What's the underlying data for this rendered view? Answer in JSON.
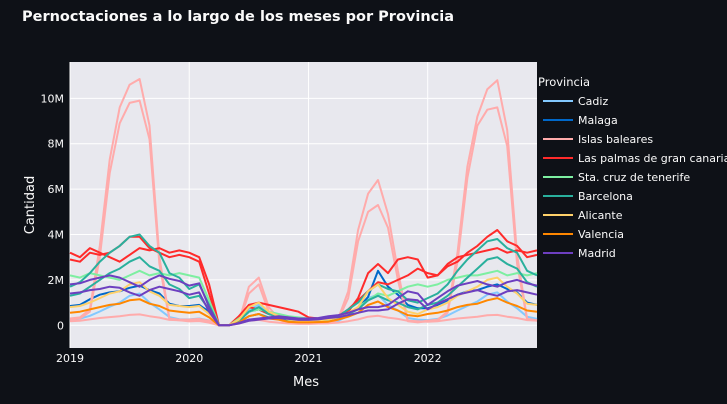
{
  "chart_data": {
    "type": "line",
    "title": "Pernoctaciones a lo largo de los meses por Provincia",
    "xlabel": "Mes",
    "ylabel": "Cantidad",
    "legend_title": "Provincia",
    "legend_position": "right",
    "grid": true,
    "xlim": [
      "2019-01",
      "2022-12"
    ],
    "ylim": [
      -1000000,
      11600000
    ],
    "x_ticks": [
      {
        "value": "2019-01",
        "label": "2019"
      },
      {
        "value": "2020-01",
        "label": "2020"
      },
      {
        "value": "2021-01",
        "label": "2021"
      },
      {
        "value": "2022-01",
        "label": "2022"
      }
    ],
    "y_ticks": [
      {
        "value": 0,
        "label": "0"
      },
      {
        "value": 2000000,
        "label": "2M"
      },
      {
        "value": 4000000,
        "label": "4M"
      },
      {
        "value": 6000000,
        "label": "6M"
      },
      {
        "value": 8000000,
        "label": "8M"
      },
      {
        "value": 10000000,
        "label": "10M"
      }
    ],
    "series": [
      {
        "name": "Cadiz",
        "color": "#83c9ff",
        "values": [
          [
            250000,
            290000,
            420000,
            610000,
            820000,
            1000000,
            1300000,
            1400000,
            1000000,
            700000,
            360000,
            270000
          ],
          [
            260000,
            300000,
            210000,
            0,
            0,
            250000,
            700000,
            900000,
            500000,
            300000,
            120000,
            100000
          ],
          [
            110000,
            120000,
            120000,
            200000,
            420000,
            800000,
            1200000,
            1350000,
            900000,
            650000,
            320000,
            250000
          ],
          [
            230000,
            280000,
            430000,
            650000,
            850000,
            1050000,
            1350000,
            1450000,
            1050000,
            750000,
            380000,
            280000
          ]
        ]
      },
      {
        "name": "Malaga",
        "color": "#0068c9",
        "values": [
          [
            850000,
            900000,
            1150000,
            1350000,
            1450000,
            1500000,
            1650000,
            1750000,
            1550000,
            1400000,
            950000,
            850000
          ],
          [
            850000,
            900000,
            600000,
            0,
            0,
            200000,
            600000,
            700000,
            500000,
            400000,
            250000,
            200000
          ],
          [
            180000,
            200000,
            230000,
            350000,
            550000,
            750000,
            1250000,
            2400000,
            1700000,
            1350000,
            900000,
            750000
          ],
          [
            750000,
            900000,
            1100000,
            1350000,
            1500000,
            1550000,
            1700000,
            1800000,
            1600000,
            1450000,
            1000000,
            900000
          ]
        ]
      },
      {
        "name": "Islas baleares",
        "color": "#ffabab",
        "values": [
          [
            300000,
            350000,
            700000,
            3500000,
            7300000,
            9600000,
            10600000,
            10850000,
            8800000,
            3000000,
            300000,
            250000
          ],
          [
            250000,
            280000,
            200000,
            0,
            0,
            150000,
            1700000,
            2100000,
            800000,
            300000,
            100000,
            80000
          ],
          [
            80000,
            90000,
            100000,
            300000,
            1500000,
            4200000,
            5800000,
            6400000,
            4900000,
            2400000,
            200000,
            150000
          ],
          [
            200000,
            250000,
            600000,
            3200000,
            7000000,
            9200000,
            10400000,
            10800000,
            8600000,
            3100000,
            280000,
            220000
          ]
        ]
      },
      {
        "name": "Islas baleares",
        "color": "#ffabab",
        "values": [
          [
            250000,
            300000,
            600000,
            3000000,
            6700000,
            8900000,
            9800000,
            9900000,
            8200000,
            2700000,
            260000,
            220000
          ],
          [
            220000,
            240000,
            180000,
            0,
            0,
            120000,
            1400000,
            1800000,
            600000,
            260000,
            90000,
            70000
          ],
          [
            70000,
            80000,
            90000,
            250000,
            1200000,
            3700000,
            5000000,
            5300000,
            4300000,
            2000000,
            180000,
            130000
          ],
          [
            180000,
            220000,
            550000,
            2800000,
            6500000,
            8800000,
            9500000,
            9600000,
            7900000,
            2700000,
            250000,
            200000
          ]
        ]
      },
      {
        "name": "Las palmas de gran canaria",
        "color": "#ff2b2b",
        "values": [
          [
            3200000,
            3000000,
            3400000,
            3200000,
            3000000,
            2800000,
            3100000,
            3400000,
            3300000,
            3400000,
            3200000,
            3300000
          ],
          [
            3200000,
            3000000,
            1800000,
            0,
            0,
            400000,
            900000,
            1000000,
            900000,
            800000,
            700000,
            600000
          ],
          [
            350000,
            300000,
            250000,
            400000,
            700000,
            1100000,
            1500000,
            1900000,
            1800000,
            2000000,
            2200000,
            2500000
          ],
          [
            2300000,
            2200000,
            2700000,
            3000000,
            3100000,
            3200000,
            3300000,
            3400000,
            3200000,
            3300000,
            3200000,
            3300000
          ]
        ]
      },
      {
        "name": "Las palmas de gran canaria",
        "color": "#ff2b2b",
        "values": [
          [
            2900000,
            2800000,
            3200000,
            3100000,
            3200000,
            3500000,
            3900000,
            3900000,
            3400000,
            3200000,
            3000000,
            3100000
          ],
          [
            3000000,
            2800000,
            1400000,
            0,
            0,
            200000,
            800000,
            700000,
            500000,
            400000,
            300000,
            250000
          ],
          [
            200000,
            180000,
            200000,
            300000,
            600000,
            1200000,
            2300000,
            2700000,
            2300000,
            2900000,
            3000000,
            2900000
          ],
          [
            2100000,
            2200000,
            2600000,
            2800000,
            3200000,
            3500000,
            3900000,
            4200000,
            3700000,
            3500000,
            3000000,
            3100000
          ]
        ]
      },
      {
        "name": "Sta. cruz de tenerife",
        "color": "#7defa1",
        "values": [
          [
            2200000,
            2100000,
            2300000,
            2200000,
            2100000,
            2000000,
            2200000,
            2400000,
            2200000,
            2300000,
            2200000,
            2300000
          ],
          [
            2200000,
            2100000,
            1100000,
            0,
            0,
            300000,
            600000,
            700000,
            600000,
            500000,
            400000,
            350000
          ],
          [
            300000,
            250000,
            200000,
            300000,
            500000,
            800000,
            1100000,
            1400000,
            1300000,
            1500000,
            1700000,
            1800000
          ],
          [
            1700000,
            1800000,
            2000000,
            2100000,
            2200000,
            2200000,
            2300000,
            2400000,
            2200000,
            2300000,
            2200000,
            2300000
          ]
        ]
      },
      {
        "name": "Barcelona",
        "color": "#29b09d",
        "values": [
          [
            1700000,
            1900000,
            2300000,
            2800000,
            3200000,
            3500000,
            3900000,
            4000000,
            3500000,
            3200000,
            2300000,
            2100000
          ],
          [
            1600000,
            1800000,
            900000,
            0,
            0,
            200000,
            600000,
            800000,
            500000,
            400000,
            200000,
            180000
          ],
          [
            200000,
            220000,
            300000,
            400000,
            700000,
            1000000,
            1500000,
            1800000,
            1600000,
            1500000,
            1100000,
            1000000
          ],
          [
            1200000,
            1400000,
            1800000,
            2400000,
            2900000,
            3300000,
            3700000,
            3800000,
            3400000,
            3200000,
            2400000,
            2200000
          ]
        ]
      },
      {
        "name": "Barcelona",
        "color": "#29b09d",
        "values": [
          [
            1300000,
            1400000,
            1700000,
            2000000,
            2300000,
            2500000,
            2800000,
            3000000,
            2600000,
            2400000,
            1800000,
            1600000
          ],
          [
            1200000,
            1300000,
            700000,
            0,
            0,
            150000,
            400000,
            500000,
            350000,
            300000,
            150000,
            120000
          ],
          [
            150000,
            160000,
            200000,
            300000,
            500000,
            700000,
            1100000,
            1300000,
            1100000,
            1000000,
            800000,
            700000
          ],
          [
            900000,
            1000000,
            1300000,
            1700000,
            2100000,
            2500000,
            2900000,
            3000000,
            2700000,
            2500000,
            1900000,
            1700000
          ]
        ]
      },
      {
        "name": "Alicante",
        "color": "#ffd16a",
        "values": [
          [
            800000,
            850000,
            1000000,
            1200000,
            1400000,
            1500000,
            1800000,
            1900000,
            1500000,
            1300000,
            900000,
            850000
          ],
          [
            800000,
            850000,
            500000,
            0,
            0,
            250000,
            800000,
            1000000,
            600000,
            400000,
            250000,
            200000
          ],
          [
            200000,
            220000,
            250000,
            350000,
            550000,
            800000,
            1500000,
            1800000,
            1200000,
            900000,
            600000,
            500000
          ],
          [
            700000,
            800000,
            1000000,
            1300000,
            1500000,
            1700000,
            2000000,
            2100000,
            1700000,
            1400000,
            950000,
            900000
          ]
        ]
      },
      {
        "name": "Valencia",
        "color": "#ffabab",
        "values": [
          [
            180000,
            200000,
            260000,
            320000,
            360000,
            400000,
            460000,
            480000,
            400000,
            340000,
            240000,
            220000
          ],
          [
            170000,
            190000,
            120000,
            0,
            0,
            80000,
            200000,
            240000,
            160000,
            120000,
            80000,
            70000
          ],
          [
            70000,
            80000,
            90000,
            120000,
            180000,
            260000,
            380000,
            420000,
            340000,
            280000,
            200000,
            180000
          ],
          [
            160000,
            180000,
            240000,
            300000,
            340000,
            380000,
            440000,
            460000,
            380000,
            320000,
            230000,
            210000
          ]
        ]
      },
      {
        "name": "Valencia",
        "color": "#ff8700",
        "values": [
          [
            550000,
            600000,
            700000,
            800000,
            900000,
            950000,
            1100000,
            1150000,
            950000,
            850000,
            650000,
            600000
          ],
          [
            550000,
            600000,
            350000,
            0,
            0,
            120000,
            400000,
            500000,
            300000,
            250000,
            150000,
            130000
          ],
          [
            130000,
            140000,
            160000,
            250000,
            380000,
            550000,
            900000,
            1050000,
            800000,
            650000,
            450000,
            400000
          ],
          [
            500000,
            550000,
            650000,
            800000,
            900000,
            950000,
            1100000,
            1200000,
            1000000,
            850000,
            650000,
            600000
          ]
        ]
      },
      {
        "name": "Madrid",
        "color": "#6d3fc0",
        "values": [
          [
            1800000,
            1850000,
            2000000,
            2100000,
            2200000,
            2100000,
            1900000,
            1700000,
            2000000,
            2200000,
            2050000,
            1950000
          ],
          [
            1750000,
            1850000,
            800000,
            0,
            0,
            100000,
            250000,
            300000,
            350000,
            400000,
            350000,
            300000
          ],
          [
            300000,
            320000,
            400000,
            450000,
            550000,
            700000,
            800000,
            800000,
            900000,
            1200000,
            1500000,
            1400000
          ],
          [
            900000,
            1200000,
            1500000,
            1750000,
            1850000,
            1950000,
            1800000,
            1700000,
            1900000,
            2000000,
            1850000,
            1750000
          ]
        ]
      },
      {
        "name": "Madrid",
        "color": "#6d3fc0",
        "values": [
          [
            1400000,
            1450000,
            1550000,
            1600000,
            1700000,
            1650000,
            1450000,
            1300000,
            1550000,
            1700000,
            1600000,
            1500000
          ],
          [
            1350000,
            1450000,
            600000,
            0,
            0,
            80000,
            200000,
            250000,
            300000,
            320000,
            280000,
            240000
          ],
          [
            240000,
            260000,
            320000,
            360000,
            450000,
            550000,
            650000,
            650000,
            700000,
            950000,
            1150000,
            1100000
          ],
          [
            700000,
            950000,
            1150000,
            1350000,
            1450000,
            1550000,
            1400000,
            1300000,
            1500000,
            1550000,
            1450000,
            1350000
          ]
        ]
      }
    ],
    "legend": [
      {
        "name": "Cadiz",
        "color": "#83c9ff"
      },
      {
        "name": "Malaga",
        "color": "#0068c9"
      },
      {
        "name": "Islas baleares",
        "color": "#ffabab"
      },
      {
        "name": "Las palmas de gran canaria",
        "color": "#ff2b2b"
      },
      {
        "name": "Sta. cruz de tenerife",
        "color": "#7defa1"
      },
      {
        "name": "Barcelona",
        "color": "#29b09d"
      },
      {
        "name": "Alicante",
        "color": "#ffd16a"
      },
      {
        "name": "Valencia",
        "color": "#ff8700"
      },
      {
        "name": "Madrid",
        "color": "#6d3fc0"
      }
    ]
  },
  "colors": {
    "page_background": "#0e1117",
    "plot_background": "#e8e8ee",
    "grid": "#ffffff",
    "text": "#fafafa"
  }
}
